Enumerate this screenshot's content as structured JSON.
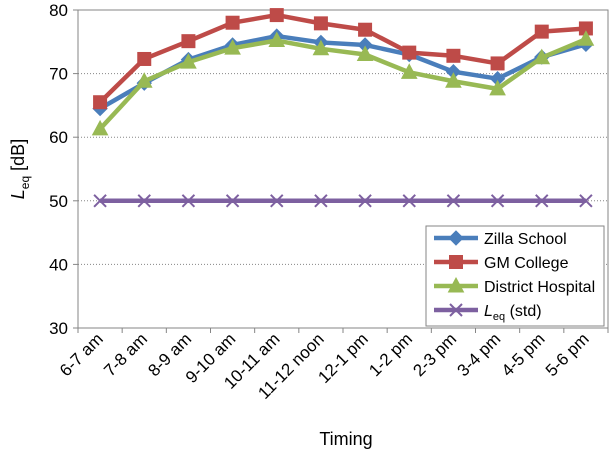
{
  "chart_data": {
    "type": "line",
    "title": "",
    "xlabel": "Timing",
    "ylabel": {
      "main": "L",
      "sub": "eq",
      "unit": " [dB]"
    },
    "ylim": [
      30,
      80
    ],
    "yticks": [
      30,
      40,
      50,
      60,
      70,
      80
    ],
    "grid": "horizontal-dotted",
    "legend_position": "bottom-right",
    "categories": [
      "6-7 am",
      "7-8 am",
      "8-9 am",
      "9-10 am",
      "10-11 am",
      "11-12 noon",
      "12-1 pm",
      "1-2 pm",
      "2-3 pm",
      "3-4 pm",
      "4-5 pm",
      "5-6 pm"
    ],
    "series": [
      {
        "name": "Zilla School",
        "color": "#4a7ebb",
        "marker": "diamond",
        "values": [
          64.5,
          68.5,
          72.2,
          74.5,
          75.9,
          74.9,
          74.5,
          73.0,
          70.3,
          69.2,
          72.6,
          74.6
        ]
      },
      {
        "name": "GM College",
        "color": "#be4b48",
        "marker": "square",
        "values": [
          65.5,
          72.3,
          75.1,
          78.0,
          79.2,
          77.9,
          76.9,
          73.3,
          72.8,
          71.6,
          76.6,
          77.1
        ]
      },
      {
        "name": "District Hospital",
        "color": "#98b954",
        "marker": "triangle",
        "values": [
          61.3,
          68.8,
          71.8,
          74.0,
          75.2,
          73.9,
          73.0,
          70.2,
          68.8,
          67.6,
          72.5,
          75.4
        ]
      },
      {
        "name": {
          "main": "L",
          "sub": "eq",
          "rest": "  (std)"
        },
        "color": "#7d60a0",
        "marker": "x",
        "values": [
          50,
          50,
          50,
          50,
          50,
          50,
          50,
          50,
          50,
          50,
          50,
          50
        ]
      }
    ]
  }
}
